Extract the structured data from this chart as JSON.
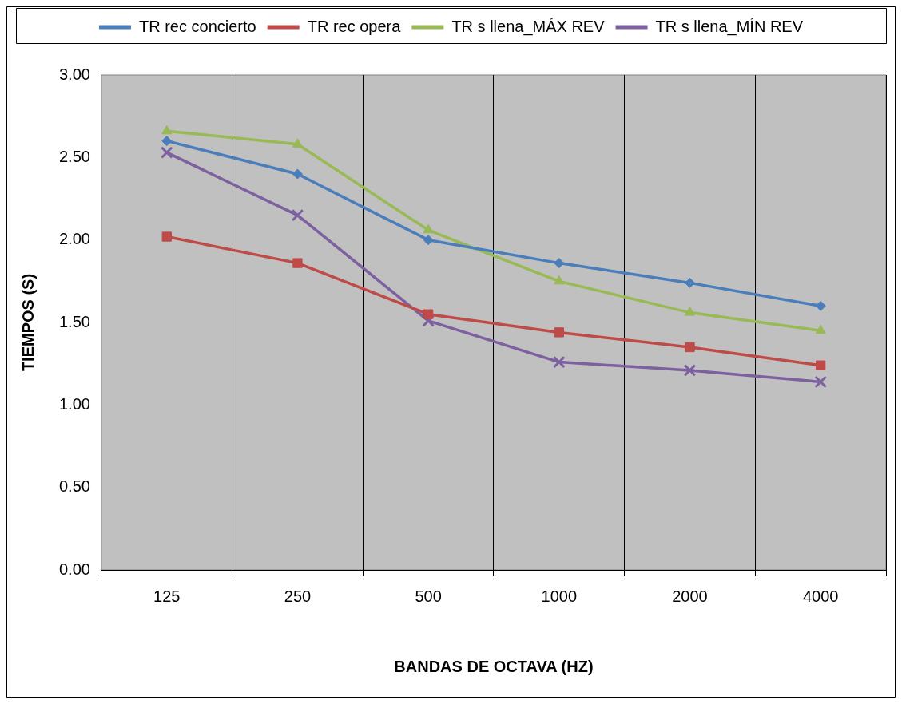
{
  "chart_data": {
    "type": "line",
    "xlabel": "BANDAS DE OCTAVA (HZ)",
    "ylabel": "TIEMPOS (S)",
    "categories": [
      "125",
      "250",
      "500",
      "1000",
      "2000",
      "4000"
    ],
    "series": [
      {
        "name": "TR rec concierto",
        "color": "#4a7ebb",
        "marker": "diamond",
        "values": [
          2.6,
          2.4,
          2.0,
          1.86,
          1.74,
          1.6
        ]
      },
      {
        "name": "TR rec opera",
        "color": "#be4b48",
        "marker": "square",
        "values": [
          2.02,
          1.86,
          1.55,
          1.44,
          1.35,
          1.24
        ]
      },
      {
        "name": "TR s llena_MÁX REV",
        "color": "#98b954",
        "marker": "triangle",
        "values": [
          2.66,
          2.58,
          2.06,
          1.75,
          1.56,
          1.45
        ]
      },
      {
        "name": "TR s llena_MÍN REV",
        "color": "#7d60a0",
        "marker": "cross",
        "values": [
          2.53,
          2.15,
          1.51,
          1.26,
          1.21,
          1.14
        ]
      }
    ],
    "ylim": [
      0,
      3
    ],
    "yticks": [
      {
        "value": 0,
        "label": "0.00"
      },
      {
        "value": 0.5,
        "label": "0.50"
      },
      {
        "value": 1,
        "label": "1.00"
      },
      {
        "value": 1.5,
        "label": "1.50"
      },
      {
        "value": 2,
        "label": "2.00"
      },
      {
        "value": 2.5,
        "label": "2.50"
      },
      {
        "value": 3,
        "label": "3.00"
      }
    ],
    "grid": "x",
    "legend": "top",
    "line_style": "solid"
  }
}
